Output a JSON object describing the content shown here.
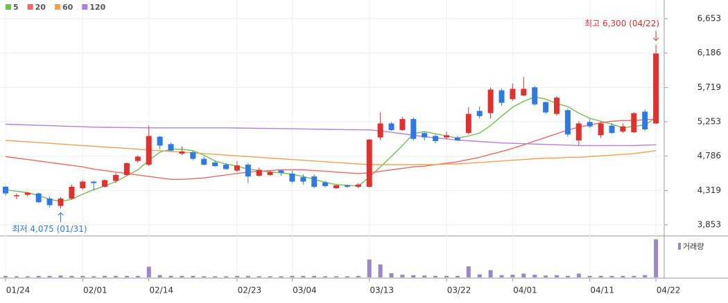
{
  "chart_data": {
    "type": "candlestick",
    "categories": [
      "01/24",
      null,
      null,
      null,
      null,
      null,
      null,
      "02/01",
      null,
      null,
      null,
      null,
      null,
      "02/14",
      null,
      null,
      null,
      null,
      null,
      null,
      null,
      "02/23",
      null,
      null,
      null,
      null,
      "03/04",
      null,
      null,
      null,
      null,
      null,
      null,
      "03/13",
      null,
      null,
      null,
      null,
      null,
      null,
      "03/22",
      null,
      null,
      null,
      null,
      null,
      "04/01",
      null,
      null,
      null,
      null,
      null,
      null,
      "04/11",
      null,
      null,
      null,
      null,
      null,
      "04/22"
    ],
    "open": [
      4370,
      4240,
      4260,
      4280,
      4210,
      4110,
      4210,
      4350,
      4440,
      4370,
      4450,
      4530,
      4720,
      4670,
      5050,
      4950,
      4820,
      4840,
      4750,
      4700,
      4670,
      4590,
      4670,
      4520,
      4530,
      4590,
      4550,
      4500,
      4510,
      4430,
      4350,
      4390,
      4370,
      4370,
      5040,
      5230,
      5140,
      5290,
      5100,
      5060,
      5040,
      5040,
      5100,
      5400,
      5370,
      5680,
      5560,
      5610,
      5720,
      5520,
      5360,
      5410,
      5000,
      5250,
      5070,
      5200,
      5120,
      5110,
      5390,
      5230
    ],
    "high": [
      4380,
      4280,
      4300,
      4290,
      4240,
      4230,
      4400,
      4460,
      4450,
      4470,
      4560,
      4700,
      4800,
      5200,
      5060,
      4970,
      4920,
      4860,
      4780,
      4720,
      4690,
      4720,
      4690,
      4630,
      4590,
      4600,
      4590,
      4540,
      4540,
      4450,
      4400,
      4400,
      4420,
      5020,
      5380,
      5250,
      5320,
      5310,
      5120,
      5080,
      5120,
      5060,
      5450,
      5460,
      5720,
      5700,
      5770,
      5860,
      5740,
      5530,
      5600,
      5430,
      5260,
      5290,
      5250,
      5230,
      5230,
      5380,
      5420,
      6300
    ],
    "low": [
      4250,
      4200,
      4240,
      4150,
      4090,
      4075,
      4200,
      4330,
      4320,
      4360,
      4420,
      4520,
      4700,
      4650,
      4880,
      4850,
      4800,
      4730,
      4660,
      4640,
      4600,
      4570,
      4420,
      4510,
      4520,
      4520,
      4420,
      4400,
      4350,
      4360,
      4340,
      4350,
      4350,
      4360,
      5000,
      5130,
      5130,
      5000,
      5000,
      4960,
      5020,
      4990,
      5080,
      5300,
      5300,
      5470,
      5540,
      5600,
      5470,
      5360,
      5340,
      5050,
      4930,
      5170,
      5030,
      5090,
      5100,
      5100,
      5130,
      5220
    ],
    "close": [
      4280,
      4255,
      4290,
      4160,
      4120,
      4210,
      4370,
      4440,
      4420,
      4460,
      4530,
      4690,
      4780,
      5060,
      4930,
      4860,
      4850,
      4750,
      4670,
      4650,
      4610,
      4660,
      4510,
      4600,
      4570,
      4560,
      4440,
      4440,
      4370,
      4380,
      4390,
      4370,
      4400,
      5010,
      5230,
      5140,
      5290,
      5020,
      5040,
      4990,
      5070,
      5000,
      5360,
      5330,
      5690,
      5510,
      5700,
      5700,
      5490,
      5380,
      5580,
      5080,
      5230,
      5190,
      5230,
      5100,
      5190,
      5370,
      5150,
      6180
    ],
    "up_color": "#e0312f",
    "down_color": "#2f7ae0",
    "series": [
      {
        "name": "5",
        "color": "#6cc24a",
        "values": [
          4330,
          4310,
          4290,
          4250,
          4200,
          4170,
          4200,
          4270,
          4330,
          4380,
          4440,
          4520,
          4600,
          4730,
          4840,
          4880,
          4880,
          4860,
          4800,
          4720,
          4680,
          4650,
          4610,
          4590,
          4570,
          4560,
          4540,
          4510,
          4470,
          4430,
          4400,
          4390,
          4380,
          4500,
          4640,
          4780,
          4930,
          5090,
          5120,
          5090,
          5060,
          5030,
          5060,
          5100,
          5200,
          5330,
          5450,
          5530,
          5590,
          5560,
          5500,
          5460,
          5370,
          5300,
          5260,
          5220,
          5170,
          5190,
          5210,
          5310
        ]
      },
      {
        "name": "20",
        "color": "#f06666",
        "values": [
          4780,
          4760,
          4740,
          4720,
          4700,
          4680,
          4660,
          4640,
          4610,
          4590,
          4570,
          4550,
          4530,
          4510,
          4490,
          4470,
          4470,
          4480,
          4490,
          4510,
          4530,
          4550,
          4570,
          4580,
          4590,
          4600,
          4600,
          4600,
          4590,
          4580,
          4570,
          4560,
          4550,
          4560,
          4580,
          4600,
          4620,
          4640,
          4650,
          4670,
          4690,
          4710,
          4740,
          4770,
          4810,
          4850,
          4890,
          4940,
          4990,
          5040,
          5090,
          5140,
          5180,
          5210,
          5240,
          5260,
          5270,
          5270,
          5280,
          5290
        ]
      },
      {
        "name": "60",
        "color": "#f5a04a",
        "values": [
          5000,
          4990,
          4980,
          4970,
          4960,
          4950,
          4940,
          4930,
          4920,
          4910,
          4900,
          4890,
          4880,
          4870,
          4860,
          4850,
          4840,
          4830,
          4820,
          4810,
          4800,
          4790,
          4780,
          4770,
          4760,
          4750,
          4740,
          4730,
          4720,
          4710,
          4700,
          4690,
          4680,
          4670,
          4670,
          4670,
          4670,
          4670,
          4670,
          4670,
          4680,
          4680,
          4690,
          4700,
          4710,
          4720,
          4730,
          4740,
          4750,
          4760,
          4760,
          4770,
          4770,
          4780,
          4790,
          4800,
          4810,
          4820,
          4840,
          4860
        ]
      },
      {
        "name": "120",
        "color": "#b07ee0",
        "values": [
          5220,
          5215,
          5210,
          5205,
          5200,
          5195,
          5190,
          5185,
          5180,
          5178,
          5176,
          5174,
          5172,
          5170,
          5170,
          5170,
          5170,
          5170,
          5170,
          5170,
          5170,
          5168,
          5166,
          5164,
          5162,
          5160,
          5158,
          5155,
          5152,
          5150,
          5148,
          5146,
          5144,
          5142,
          5130,
          5110,
          5090,
          5070,
          5050,
          5035,
          5020,
          5005,
          4995,
          4985,
          4975,
          4965,
          4960,
          4955,
          4950,
          4945,
          4940,
          4935,
          4930,
          4930,
          4930,
          4930,
          4930,
          4930,
          4935,
          4940
        ]
      }
    ],
    "volume": {
      "name": "거래량",
      "color": "#9a86c8",
      "values": [
        40,
        30,
        30,
        40,
        40,
        50,
        40,
        40,
        30,
        40,
        40,
        40,
        40,
        280,
        60,
        40,
        40,
        40,
        30,
        30,
        30,
        40,
        40,
        30,
        30,
        30,
        40,
        40,
        40,
        30,
        30,
        30,
        40,
        470,
        340,
        110,
        70,
        60,
        50,
        40,
        40,
        40,
        290,
        80,
        190,
        60,
        70,
        100,
        70,
        50,
        60,
        40,
        100,
        40,
        40,
        40,
        40,
        40,
        60,
        1000
      ]
    },
    "ylim": [
      3853,
      6653
    ],
    "yticks": [
      {
        "value": 3853,
        "label": "3,853"
      },
      {
        "value": 4319,
        "label": "4,319"
      },
      {
        "value": 4786,
        "label": "4,786"
      },
      {
        "value": 5253,
        "label": "5,253"
      },
      {
        "value": 5719,
        "label": "5,719"
      },
      {
        "value": 6186,
        "label": "6,186"
      },
      {
        "value": 6653,
        "label": "6,653"
      }
    ],
    "grid": true,
    "annotations": {
      "high": {
        "text": "최고 6,300 (04/22)",
        "color": "#e0312f"
      },
      "low": {
        "text": "최저 4,075 (01/31)",
        "color": "#2f7ae0"
      }
    }
  }
}
